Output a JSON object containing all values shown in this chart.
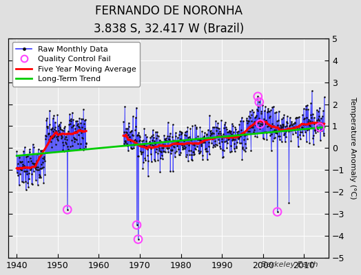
{
  "title": "FERNANDO DE NORONHA",
  "subtitle": "3.838 S, 32.417 W (Brazil)",
  "ylabel": "Temperature Anomaly (°C)",
  "watermark": "Berkeley Earth",
  "ylim": [
    -5,
    5
  ],
  "xlim": [
    1938,
    2016
  ],
  "xticks": [
    1940,
    1950,
    1960,
    1970,
    1980,
    1990,
    2000,
    2010
  ],
  "yticks": [
    -5,
    -4,
    -3,
    -2,
    -1,
    0,
    1,
    2,
    3,
    4,
    5
  ],
  "background_color": "#e0e0e0",
  "plot_bg_color": "#e8e8e8",
  "raw_line_color": "#3333ff",
  "raw_dot_color": "#111111",
  "moving_avg_color": "#ff0000",
  "trend_color": "#00cc00",
  "qc_fail_color": "#ff44ff",
  "title_fontsize": 12,
  "subtitle_fontsize": 10,
  "ylabel_fontsize": 8,
  "tick_fontsize": 9,
  "legend_fontsize": 8,
  "trend_x0": 1940,
  "trend_x1": 2015,
  "trend_y0": -0.35,
  "trend_y1": 0.95
}
